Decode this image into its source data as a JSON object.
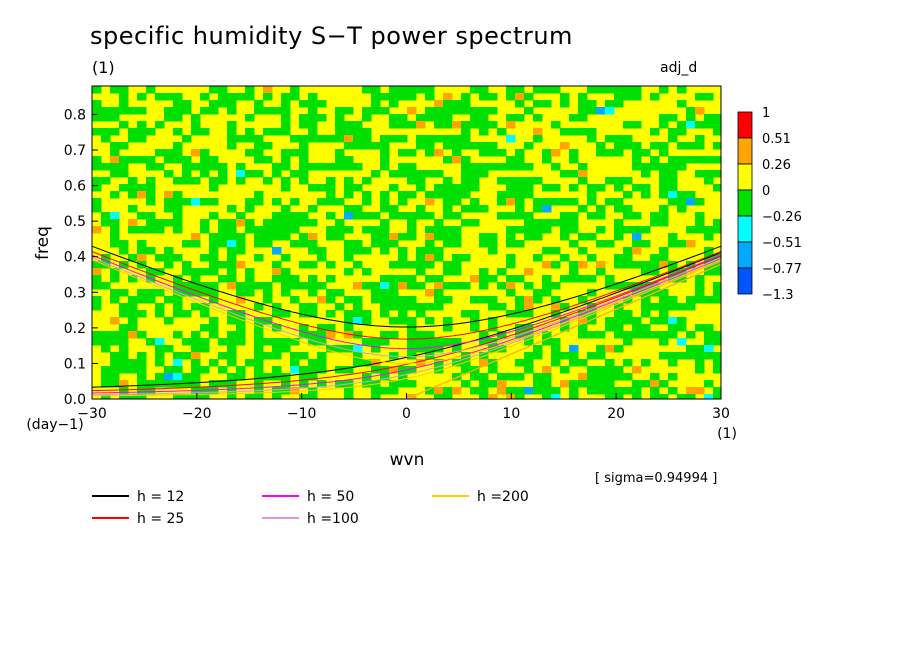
{
  "header": {
    "title": "specific humidity S−T power spectrum",
    "subtitle_left": "(1)",
    "subtitle_right": "adj_d"
  },
  "chart_data": {
    "type": "heatmap",
    "title": "specific humidity S−T power spectrum",
    "xlabel": "wvn",
    "ylabel": "freq",
    "x_unit": "(1)",
    "y_unit": "(day−1)",
    "xlim": [
      -30,
      30
    ],
    "ylim": [
      0,
      0.88
    ],
    "xticks": [
      -30,
      -20,
      -10,
      0,
      10,
      20,
      30
    ],
    "xtick_labels": [
      "−30",
      "−20",
      "−10",
      "0",
      "10",
      "20",
      "30"
    ],
    "yticks": [
      0,
      0.1,
      0.2,
      0.3,
      0.4,
      0.5,
      0.6,
      0.7,
      0.8
    ],
    "ytick_labels": [
      "0.0",
      "0.1",
      "0.2",
      "0.3",
      "0.4",
      "0.5",
      "0.6",
      "0.7",
      "0.8"
    ],
    "colorbar": {
      "levels": [
        "1",
        "0.51",
        "0.26",
        "0",
        "−0.26",
        "−0.51",
        "−0.77",
        "−1.3"
      ],
      "colors": [
        "#ff0000",
        "#ffa500",
        "#ffff00",
        "#00e000",
        "#00ffff",
        "#00aaff",
        "#0055ff"
      ]
    },
    "sigma_text": "[ sigma=0.94994 ]",
    "dispersion_curves": [
      {
        "label": "h = 12",
        "h": 12,
        "color": "#000000"
      },
      {
        "label": "h = 25",
        "h": 25,
        "color": "#ff0000"
      },
      {
        "label": "h = 50",
        "h": 50,
        "color": "#ff00ff"
      },
      {
        "label": "h =100",
        "h": 100,
        "color": "#dd99dd"
      },
      {
        "label": "h =200",
        "h": 200,
        "color": "#ffcc00"
      }
    ],
    "grid": false
  }
}
